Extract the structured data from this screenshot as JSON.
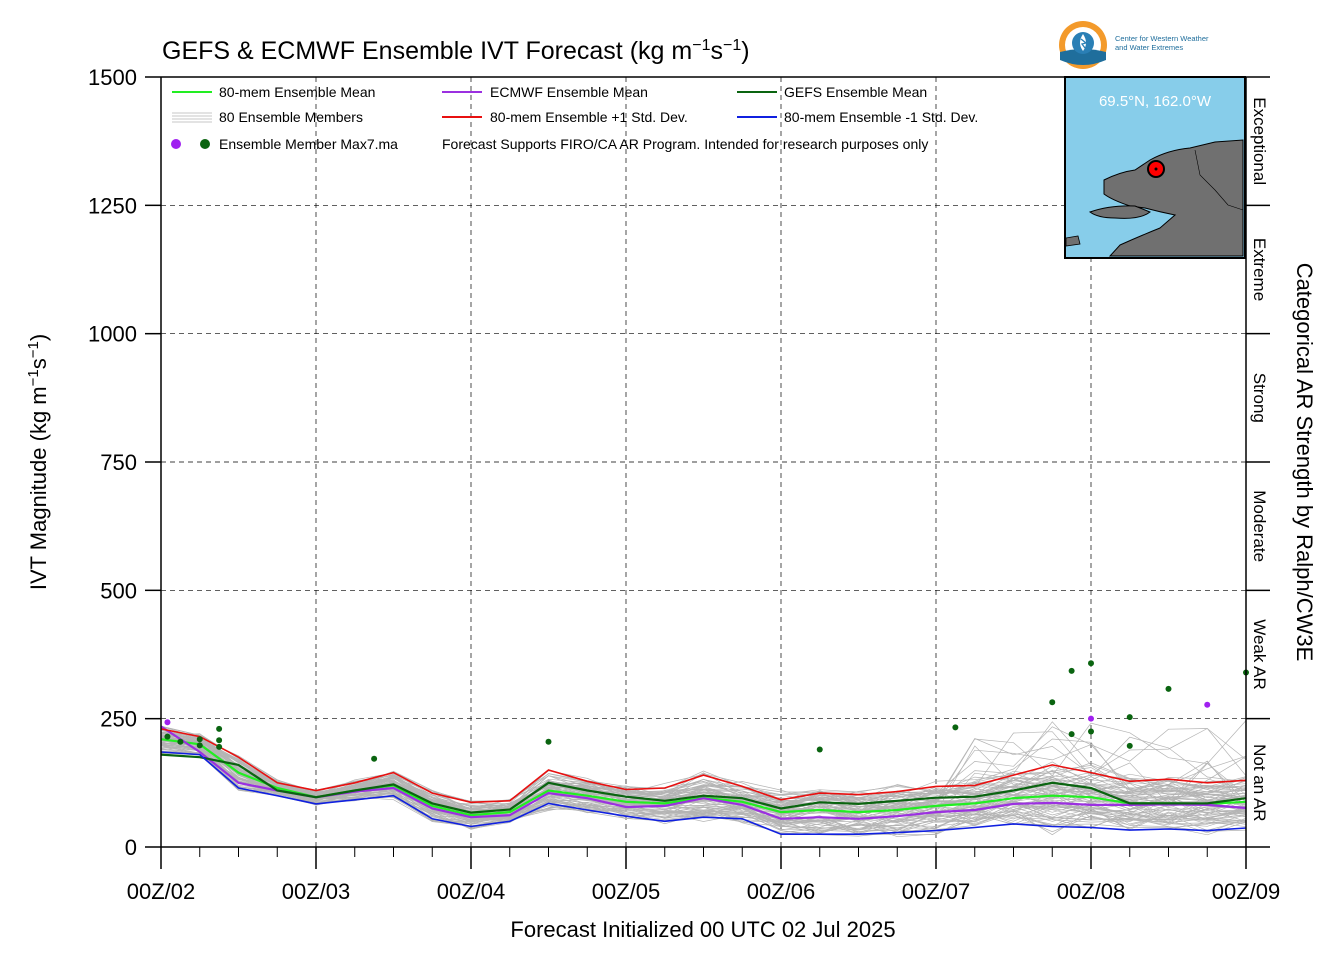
{
  "chart_data": {
    "type": "line",
    "title": "GEFS & ECMWF Ensemble IVT Forecast",
    "title_units": "(kg m",
    "title_units_exp1": "−1",
    "title_units_mid": "s",
    "title_units_exp2": "−1",
    "title_units_end": ")",
    "ylabel": "IVT Magnitude (kg m",
    "ylabel_exp1": "−1",
    "ylabel_mid": "s",
    "ylabel_exp2": "−1",
    "ylabel_end": ")",
    "xlabel": "Forecast Initialized 00 UTC 02 Jul 2025",
    "right_label": "Categorical AR Strength by Ralph/CW3E",
    "ylim": [
      0,
      1500
    ],
    "xlim": [
      0,
      168
    ],
    "y_ticks": [
      "0",
      "250",
      "500",
      "750",
      "1000",
      "1250",
      "1500"
    ],
    "y_tick_values": [
      0,
      250,
      500,
      750,
      1000,
      1250,
      1500
    ],
    "x_ticks": [
      "00Z/02",
      "00Z/03",
      "00Z/04",
      "00Z/05",
      "00Z/06",
      "00Z/07",
      "00Z/08",
      "00Z/09"
    ],
    "x_tick_hours": [
      0,
      24,
      48,
      72,
      96,
      120,
      144,
      168
    ],
    "grid": true,
    "categories_right": [
      {
        "label": "Not an AR",
        "range": [
          0,
          250
        ]
      },
      {
        "label": "Weak AR",
        "range": [
          250,
          500
        ]
      },
      {
        "label": "Moderate",
        "range": [
          500,
          750
        ]
      },
      {
        "label": "Strong",
        "range": [
          750,
          1000
        ]
      },
      {
        "label": "Extreme",
        "range": [
          1000,
          1250
        ]
      },
      {
        "label": "Exceptional",
        "range": [
          1250,
          1500
        ]
      }
    ],
    "legend": {
      "placement": "top-left",
      "entries": [
        {
          "label": "80-mem Ensemble Mean",
          "color": "#22ee22",
          "kind": "line"
        },
        {
          "label": "ECMWF Ensemble Mean",
          "color": "#9b30e0",
          "kind": "line"
        },
        {
          "label": "GEFS Ensemble Mean",
          "color": "#0a6410",
          "kind": "line"
        },
        {
          "label": "80 Ensemble Members",
          "color": "#b4b4b4",
          "kind": "members"
        },
        {
          "label": "80-mem Ensemble +1 Std. Dev.",
          "color": "#e81010",
          "kind": "line"
        },
        {
          "label": "80-mem Ensemble -1 Std. Dev.",
          "color": "#1020e0",
          "kind": "line"
        },
        {
          "label": "Ensemble Member Max7.ma",
          "color": "#0a6410",
          "kind": "dots"
        },
        {
          "label": "Forecast Supports FIRO/CA AR Program. Intended for research purposes only",
          "color": "#000000",
          "kind": "note"
        }
      ]
    },
    "hours": [
      0,
      6,
      12,
      18,
      24,
      30,
      36,
      42,
      48,
      54,
      60,
      66,
      72,
      78,
      84,
      90,
      96,
      102,
      108,
      114,
      120,
      126,
      132,
      138,
      144,
      150,
      156,
      162,
      168
    ],
    "series": [
      {
        "name": "80-mem Ensemble Mean",
        "color": "#22ee22",
        "values": [
          210,
          200,
          145,
          115,
          97,
          110,
          120,
          80,
          62,
          68,
          110,
          100,
          88,
          85,
          96,
          88,
          68,
          72,
          68,
          72,
          80,
          85,
          95,
          100,
          97,
          85,
          85,
          84,
          88
        ]
      },
      {
        "name": "ECMWF Ensemble Mean",
        "color": "#9b30e0",
        "values": [
          235,
          185,
          125,
          110,
          97,
          108,
          115,
          75,
          58,
          62,
          105,
          95,
          78,
          80,
          95,
          82,
          55,
          58,
          55,
          60,
          68,
          72,
          84,
          86,
          82,
          82,
          83,
          82,
          76
        ]
      },
      {
        "name": "GEFS Ensemble Mean",
        "color": "#0a6410",
        "values": [
          180,
          175,
          160,
          110,
          97,
          110,
          122,
          85,
          67,
          73,
          125,
          110,
          98,
          90,
          100,
          95,
          75,
          87,
          84,
          90,
          96,
          98,
          110,
          125,
          115,
          85,
          85,
          85,
          95
        ]
      },
      {
        "name": "80-mem Ensemble +1 Std. Dev.",
        "color": "#e81010",
        "values": [
          230,
          215,
          175,
          125,
          110,
          125,
          145,
          105,
          87,
          90,
          150,
          128,
          112,
          115,
          140,
          118,
          92,
          105,
          102,
          108,
          118,
          120,
          140,
          160,
          145,
          128,
          132,
          125,
          130
        ]
      },
      {
        "name": "80-mem Ensemble -1 Std. Dev.",
        "color": "#1020e0",
        "values": [
          185,
          180,
          115,
          100,
          84,
          92,
          100,
          55,
          40,
          50,
          85,
          72,
          60,
          50,
          58,
          55,
          25,
          25,
          25,
          28,
          32,
          38,
          45,
          40,
          38,
          33,
          35,
          32,
          37
        ]
      }
    ],
    "member_max_points": [
      {
        "hour": 1,
        "value": 215,
        "source": "GEFS"
      },
      {
        "hour": 1,
        "value": 243,
        "source": "ECMWF"
      },
      {
        "hour": 3,
        "value": 205,
        "source": "GEFS"
      },
      {
        "hour": 6,
        "value": 198,
        "source": "GEFS"
      },
      {
        "hour": 6,
        "value": 210,
        "source": "GEFS"
      },
      {
        "hour": 9,
        "value": 195,
        "source": "GEFS"
      },
      {
        "hour": 9,
        "value": 208,
        "source": "GEFS"
      },
      {
        "hour": 9,
        "value": 230,
        "source": "GEFS"
      },
      {
        "hour": 33,
        "value": 172,
        "source": "GEFS"
      },
      {
        "hour": 60,
        "value": 205,
        "source": "GEFS"
      },
      {
        "hour": 102,
        "value": 190,
        "source": "GEFS"
      },
      {
        "hour": 123,
        "value": 233,
        "source": "GEFS"
      },
      {
        "hour": 138,
        "value": 282,
        "source": "GEFS"
      },
      {
        "hour": 141,
        "value": 343,
        "source": "GEFS"
      },
      {
        "hour": 141,
        "value": 220,
        "source": "GEFS"
      },
      {
        "hour": 144,
        "value": 358,
        "source": "GEFS"
      },
      {
        "hour": 144,
        "value": 250,
        "source": "ECMWF"
      },
      {
        "hour": 144,
        "value": 225,
        "source": "GEFS"
      },
      {
        "hour": 150,
        "value": 253,
        "source": "GEFS"
      },
      {
        "hour": 150,
        "value": 197,
        "source": "GEFS"
      },
      {
        "hour": 156,
        "value": 308,
        "source": "GEFS"
      },
      {
        "hour": 162,
        "value": 277,
        "source": "ECMWF"
      },
      {
        "hour": 168,
        "value": 340,
        "source": "GEFS"
      }
    ],
    "members_count": 80
  },
  "inset_map": {
    "location_label": "69.5°N, 162.0°W",
    "water_color": "#87cdea",
    "land_color": "#707070",
    "marker_color": "#ff0000"
  },
  "logo": {
    "line1": "Center for Western Weather",
    "line2": "and Water Extremes",
    "icon_name": "cw3e-logo-icon",
    "color_ring": "#f39a2b",
    "color_water": "#1f6e9c"
  },
  "colors": {
    "members": "#b4b4b4",
    "gefs_dot": "#0a6410",
    "ecmwf_dot": "#a020f0"
  }
}
